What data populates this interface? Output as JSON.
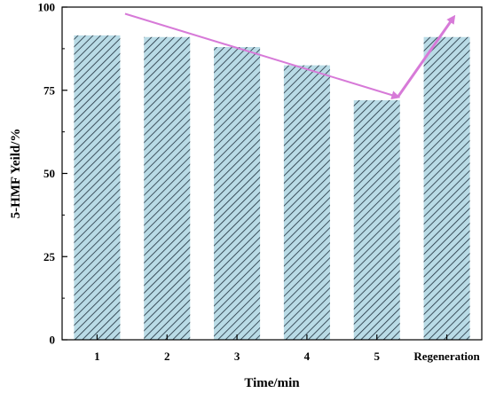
{
  "chart_data": {
    "type": "bar",
    "title": "",
    "xlabel": "Time/min",
    "ylabel": "5-HMF Yeild/%",
    "categories": [
      "1",
      "2",
      "3",
      "4",
      "5",
      "Regeneration"
    ],
    "values": [
      91.5,
      91,
      88,
      82.5,
      72,
      91
    ],
    "ylim": [
      0,
      100
    ],
    "yticks": [
      0,
      25,
      50,
      75,
      100
    ],
    "grid": false,
    "legend": "none",
    "colors": {
      "bar_fill": "#b9dbe6",
      "bar_hatch": "#1f2f3c",
      "arrow": "#d77ad8",
      "axis": "#000000"
    },
    "annotations": [
      {
        "type": "trend-arrow",
        "from": {
          "x": 0.4,
          "y": 98
        },
        "to": {
          "x": 4.3,
          "y": 73
        }
      },
      {
        "type": "trend-arrow",
        "from": {
          "x": 4.3,
          "y": 73
        },
        "to": {
          "x": 5.1,
          "y": 97
        }
      }
    ]
  }
}
